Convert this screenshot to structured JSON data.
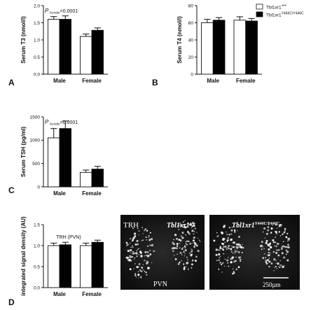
{
  "legend": {
    "wt": {
      "name": "Tbl1xr1",
      "sup": "+/+"
    },
    "mut": {
      "name": "Tbl1xr1",
      "sup": "Y446C/Y446C"
    }
  },
  "colors": {
    "wt": "#ffffff",
    "mut": "#000000",
    "axis": "#111111"
  },
  "chart_data": [
    {
      "panel": "A",
      "type": "bar",
      "categories": [
        "Male",
        "Female"
      ],
      "ylabel": "Serum T3 (nmol/l)",
      "ylim": [
        0,
        2.0
      ],
      "yticks": [
        0,
        0.5,
        1.0,
        1.5,
        2.0
      ],
      "tick_decimals": 1,
      "annotation": {
        "p": "P",
        "sub": "Gender",
        "rest": "<0.0001"
      },
      "series": [
        {
          "key": "wt",
          "values": [
            1.6,
            1.1
          ],
          "errors": [
            0.08,
            0.07
          ]
        },
        {
          "key": "mut",
          "values": [
            1.6,
            1.28
          ],
          "errors": [
            0.1,
            0.07
          ]
        }
      ]
    },
    {
      "panel": "B",
      "type": "bar",
      "categories": [
        "Male",
        "Female"
      ],
      "ylabel": "Serum T4 (nmol/l)",
      "ylim": [
        0,
        80
      ],
      "yticks": [
        0,
        20,
        40,
        60,
        80
      ],
      "tick_decimals": 0,
      "annotation": null,
      "series": [
        {
          "key": "wt",
          "values": [
            60,
            63
          ],
          "errors": [
            4,
            4
          ]
        },
        {
          "key": "mut",
          "values": [
            63,
            62
          ],
          "errors": [
            3,
            3
          ]
        }
      ]
    },
    {
      "panel": "C",
      "type": "bar",
      "categories": [
        "Male",
        "Female"
      ],
      "ylabel": "Serum TSH (pg/ml)",
      "ylim": [
        0,
        1500
      ],
      "yticks": [
        0,
        500,
        1000,
        1500
      ],
      "tick_decimals": 0,
      "annotation": {
        "p": "P",
        "sub": "Gender",
        "rest": "<0.0001"
      },
      "series": [
        {
          "key": "wt",
          "values": [
            1050,
            310
          ],
          "errors": [
            200,
            50
          ]
        },
        {
          "key": "mut",
          "values": [
            1250,
            380
          ],
          "errors": [
            160,
            60
          ]
        }
      ]
    },
    {
      "panel": "D",
      "type": "bar",
      "categories": [
        "Male",
        "Female"
      ],
      "ylabel": "integrated signal density (AU)",
      "title": "TRH (PVN)",
      "ylim": [
        0,
        1.5
      ],
      "yticks": [
        0,
        0.5,
        1.0,
        1.5
      ],
      "tick_decimals": 1,
      "annotation": null,
      "series": [
        {
          "key": "wt",
          "values": [
            1.0,
            1.0
          ],
          "errors": [
            0.06,
            0.06
          ]
        },
        {
          "key": "mut",
          "values": [
            1.02,
            1.08
          ],
          "errors": [
            0.06,
            0.05
          ]
        }
      ]
    }
  ],
  "micrographs": [
    {
      "label": "TRH",
      "genotype": {
        "name": "Tbl1xr1",
        "sup": "+/+"
      },
      "region": "PVN",
      "scalebar": ""
    },
    {
      "label": "",
      "genotype": {
        "name": "Tbl1xr1",
        "sup": "Y446C/Y446C"
      },
      "region": "",
      "scalebar": "250µm"
    }
  ]
}
